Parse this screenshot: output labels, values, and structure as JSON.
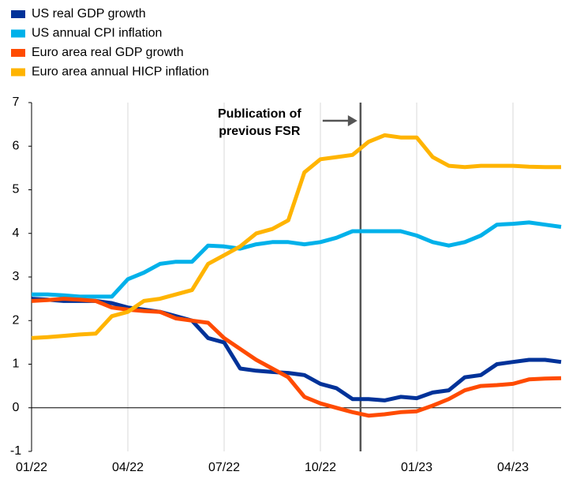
{
  "chart_data": {
    "type": "line",
    "x": [
      0,
      0.5,
      1,
      1.5,
      2,
      2.5,
      3,
      3.5,
      4,
      4.5,
      5,
      5.5,
      6,
      6.5,
      7,
      7.5,
      8,
      8.5,
      9,
      9.5,
      10,
      10.5,
      11,
      11.5,
      12,
      12.5,
      13,
      13.5,
      14,
      14.5,
      15,
      15.5,
      16,
      16.5
    ],
    "series": [
      {
        "name": "US real GDP growth",
        "color": "#003299",
        "values": [
          2.5,
          2.48,
          2.45,
          2.45,
          2.45,
          2.4,
          2.3,
          2.25,
          2.2,
          2.1,
          2.0,
          1.6,
          1.5,
          0.9,
          0.85,
          0.82,
          0.8,
          0.75,
          0.55,
          0.45,
          0.2,
          0.2,
          0.17,
          0.25,
          0.22,
          0.35,
          0.4,
          0.7,
          0.75,
          1.0,
          1.05,
          1.1,
          1.1,
          1.05
        ]
      },
      {
        "name": "US annual CPI inflation",
        "color": "#00b1ea",
        "values": [
          2.6,
          2.6,
          2.58,
          2.55,
          2.55,
          2.55,
          2.95,
          3.1,
          3.3,
          3.35,
          3.35,
          3.72,
          3.7,
          3.65,
          3.75,
          3.8,
          3.8,
          3.75,
          3.8,
          3.9,
          4.05,
          4.05,
          4.05,
          4.05,
          3.95,
          3.8,
          3.72,
          3.8,
          3.95,
          4.2,
          4.22,
          4.25,
          4.2,
          4.15
        ]
      },
      {
        "name": "Euro area real GDP growth",
        "color": "#ff4b00",
        "values": [
          2.45,
          2.47,
          2.5,
          2.48,
          2.45,
          2.3,
          2.25,
          2.22,
          2.2,
          2.05,
          2.0,
          1.95,
          1.6,
          1.35,
          1.1,
          0.9,
          0.7,
          0.25,
          0.1,
          0.0,
          -0.1,
          -0.18,
          -0.15,
          -0.1,
          -0.08,
          0.05,
          0.2,
          0.4,
          0.5,
          0.52,
          0.55,
          0.65,
          0.67,
          0.68
        ]
      },
      {
        "name": "Euro area annual HICP inflation",
        "color": "#ffb400",
        "values": [
          1.6,
          1.62,
          1.65,
          1.68,
          1.7,
          2.1,
          2.2,
          2.45,
          2.5,
          2.6,
          2.7,
          3.3,
          3.5,
          3.7,
          4.0,
          4.1,
          4.3,
          5.4,
          5.7,
          5.75,
          5.8,
          6.1,
          6.25,
          6.2,
          6.2,
          5.75,
          5.55,
          5.52,
          5.55,
          5.55,
          5.55,
          5.53,
          5.52,
          5.52
        ]
      }
    ],
    "xlim": [
      0,
      16.5
    ],
    "xticks": [
      {
        "value": 0,
        "label": "01/22"
      },
      {
        "value": 3,
        "label": "04/22"
      },
      {
        "value": 6,
        "label": "07/22"
      },
      {
        "value": 9,
        "label": "10/22"
      },
      {
        "value": 12,
        "label": "01/23"
      },
      {
        "value": 15,
        "label": "04/23"
      }
    ],
    "ylim": [
      -1,
      7
    ],
    "yticks": [
      -1,
      0,
      1,
      2,
      3,
      4,
      5,
      6,
      7
    ],
    "grid": true,
    "legend": "top-left",
    "annotation": {
      "lines": [
        "Publication of",
        "previous FSR"
      ],
      "x": 10.25
    }
  }
}
